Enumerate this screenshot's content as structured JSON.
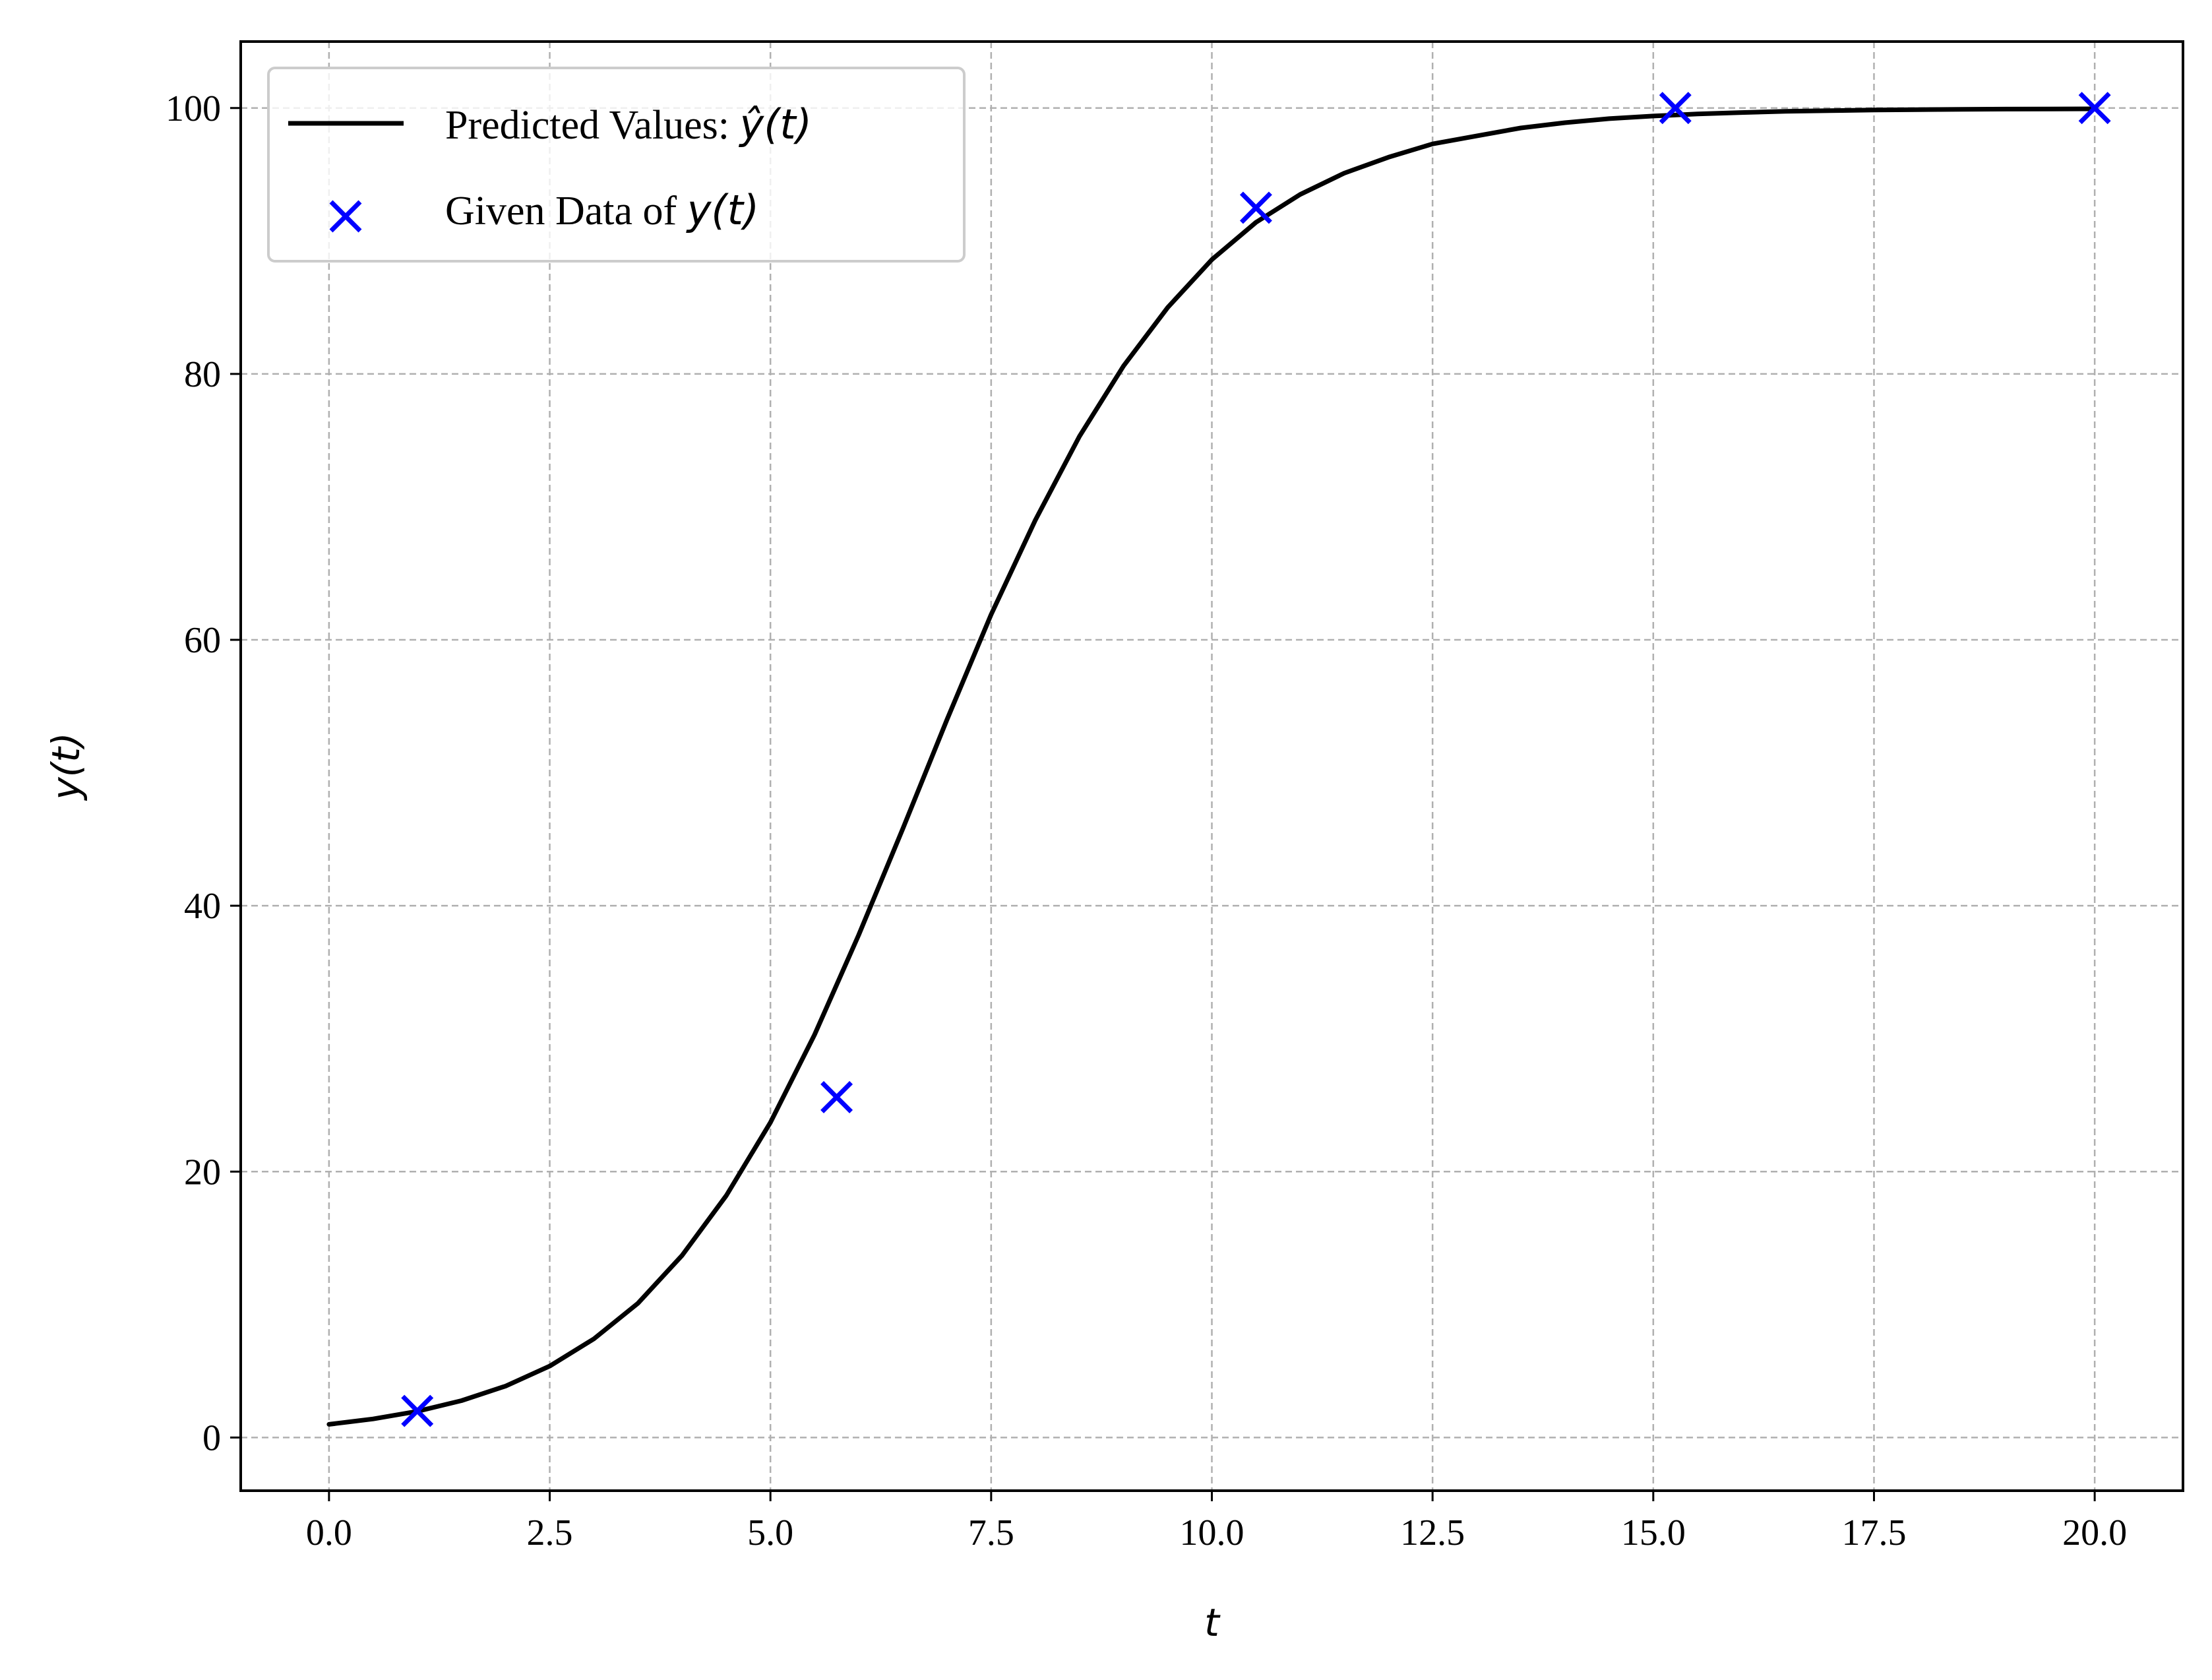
{
  "chart_data": {
    "type": "line",
    "title": "",
    "xlabel": "t",
    "ylabel": "y(t)",
    "xlim": [
      -1,
      21
    ],
    "ylim": [
      -4,
      105
    ],
    "x_ticks": [
      0.0,
      2.5,
      5.0,
      7.5,
      10.0,
      12.5,
      15.0,
      17.5,
      20.0
    ],
    "x_tick_labels": [
      "0.0",
      "2.5",
      "5.0",
      "7.5",
      "10.0",
      "12.5",
      "15.0",
      "17.5",
      "20.0"
    ],
    "y_ticks": [
      0,
      20,
      40,
      60,
      80,
      100
    ],
    "y_tick_labels": [
      "0",
      "20",
      "40",
      "60",
      "80",
      "100"
    ],
    "grid": true,
    "legend_position": "top-left",
    "series": [
      {
        "name": "Predicted Values: ŷ(t)",
        "name_text": "Predicted Values: ",
        "name_math": "ŷ(t)",
        "kind": "line",
        "color": "#000000",
        "x": [
          0,
          0.5,
          1,
          1.5,
          2,
          2.5,
          3,
          3.5,
          4,
          4.5,
          5,
          5.5,
          6,
          6.5,
          7,
          7.5,
          8,
          8.5,
          9,
          9.5,
          10,
          10.5,
          11,
          11.5,
          12,
          12.5,
          13,
          13.5,
          14,
          14.5,
          15,
          15.5,
          16,
          16.5,
          17,
          17.5,
          18,
          18.5,
          19,
          19.5,
          20
        ],
        "y": [
          0.99,
          1.4,
          1.97,
          2.77,
          3.87,
          5.37,
          7.42,
          10.1,
          13.7,
          18.2,
          23.7,
          30.3,
          37.8,
          45.8,
          54.0,
          61.9,
          69.0,
          75.3,
          80.6,
          85.0,
          88.6,
          91.4,
          93.5,
          95.1,
          96.3,
          97.3,
          97.9,
          98.5,
          98.9,
          99.2,
          99.4,
          99.55,
          99.66,
          99.75,
          99.8,
          99.85,
          99.88,
          99.9,
          99.92,
          99.93,
          99.94
        ]
      },
      {
        "name": "Given Data of y(t)",
        "name_text": "Given Data of ",
        "name_math": "y(t)",
        "kind": "scatter",
        "marker": "x",
        "color": "#0000ff",
        "x": [
          1.0,
          5.75,
          10.5,
          15.25,
          20.0
        ],
        "y": [
          2.0,
          25.6,
          92.5,
          100.0,
          100.0
        ]
      }
    ]
  }
}
